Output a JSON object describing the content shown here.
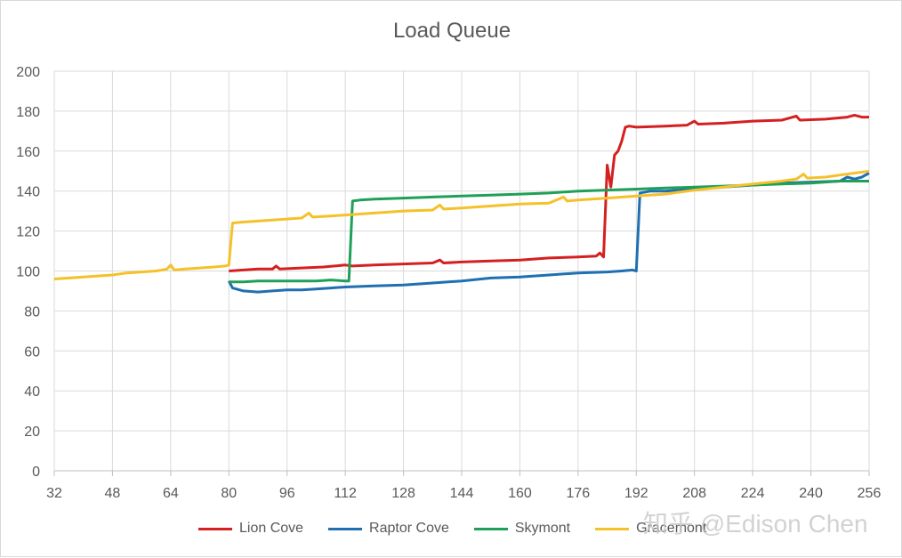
{
  "chart_data": {
    "type": "line",
    "title": "Load Queue",
    "xlabel": "",
    "ylabel": "",
    "xlim": [
      32,
      256
    ],
    "ylim": [
      0,
      200
    ],
    "x_ticks": [
      32,
      48,
      64,
      80,
      96,
      112,
      128,
      144,
      160,
      176,
      192,
      208,
      224,
      240,
      256
    ],
    "y_ticks": [
      0,
      20,
      40,
      60,
      80,
      100,
      120,
      140,
      160,
      180,
      200
    ],
    "grid": true,
    "legend_position": "bottom",
    "series": [
      {
        "name": "Lion Cove",
        "color": "#d42020",
        "points": [
          [
            80,
            100
          ],
          [
            84,
            100.5
          ],
          [
            88,
            101
          ],
          [
            92,
            101
          ],
          [
            93,
            102.5
          ],
          [
            94,
            101
          ],
          [
            100,
            101.5
          ],
          [
            106,
            102
          ],
          [
            112,
            103
          ],
          [
            114,
            102.5
          ],
          [
            120,
            103
          ],
          [
            128,
            103.5
          ],
          [
            136,
            104
          ],
          [
            138,
            105.5
          ],
          [
            139,
            104
          ],
          [
            144,
            104.5
          ],
          [
            152,
            105
          ],
          [
            160,
            105.5
          ],
          [
            168,
            106.5
          ],
          [
            176,
            107
          ],
          [
            181,
            107.5
          ],
          [
            182,
            109
          ],
          [
            183,
            107
          ],
          [
            184,
            153
          ],
          [
            185,
            142
          ],
          [
            186,
            158
          ],
          [
            187,
            160
          ],
          [
            188,
            165
          ],
          [
            189,
            172
          ],
          [
            190,
            172.5
          ],
          [
            192,
            172
          ],
          [
            200,
            172.5
          ],
          [
            206,
            173
          ],
          [
            208,
            175
          ],
          [
            209,
            173.5
          ],
          [
            216,
            174
          ],
          [
            224,
            175
          ],
          [
            232,
            175.5
          ],
          [
            236,
            177.5
          ],
          [
            237,
            175.5
          ],
          [
            244,
            176
          ],
          [
            250,
            177
          ],
          [
            252,
            178
          ],
          [
            254,
            177
          ],
          [
            256,
            177
          ]
        ]
      },
      {
        "name": "Raptor Cove",
        "color": "#1f6fb2",
        "points": [
          [
            80,
            95
          ],
          [
            81,
            91.5
          ],
          [
            84,
            90
          ],
          [
            88,
            89.5
          ],
          [
            92,
            90
          ],
          [
            96,
            90.5
          ],
          [
            100,
            90.5
          ],
          [
            104,
            91
          ],
          [
            108,
            91.5
          ],
          [
            112,
            92
          ],
          [
            120,
            92.5
          ],
          [
            128,
            93
          ],
          [
            136,
            94
          ],
          [
            144,
            95
          ],
          [
            152,
            96.5
          ],
          [
            160,
            97
          ],
          [
            168,
            98
          ],
          [
            176,
            99
          ],
          [
            184,
            99.5
          ],
          [
            188,
            100
          ],
          [
            191,
            100.5
          ],
          [
            192,
            100
          ],
          [
            193,
            139
          ],
          [
            196,
            140
          ],
          [
            200,
            140
          ],
          [
            208,
            141
          ],
          [
            216,
            142
          ],
          [
            224,
            143
          ],
          [
            232,
            144
          ],
          [
            240,
            144.5
          ],
          [
            248,
            145
          ],
          [
            250,
            147
          ],
          [
            252,
            146
          ],
          [
            254,
            147
          ],
          [
            256,
            149
          ]
        ]
      },
      {
        "name": "Skymont",
        "color": "#1fa058",
        "points": [
          [
            80,
            94.5
          ],
          [
            84,
            94.5
          ],
          [
            88,
            95
          ],
          [
            96,
            95
          ],
          [
            104,
            95
          ],
          [
            108,
            95.5
          ],
          [
            112,
            95
          ],
          [
            113,
            95
          ],
          [
            114,
            135
          ],
          [
            116,
            135.5
          ],
          [
            120,
            136
          ],
          [
            128,
            136.5
          ],
          [
            136,
            137
          ],
          [
            144,
            137.5
          ],
          [
            152,
            138
          ],
          [
            160,
            138.5
          ],
          [
            168,
            139
          ],
          [
            176,
            140
          ],
          [
            184,
            140.5
          ],
          [
            192,
            141
          ],
          [
            200,
            141.5
          ],
          [
            208,
            142
          ],
          [
            216,
            142.5
          ],
          [
            224,
            143
          ],
          [
            232,
            143.5
          ],
          [
            240,
            144
          ],
          [
            248,
            145
          ],
          [
            256,
            145
          ]
        ]
      },
      {
        "name": "Gracemont",
        "color": "#f5c12a",
        "points": [
          [
            32,
            96
          ],
          [
            36,
            96.5
          ],
          [
            40,
            97
          ],
          [
            44,
            97.5
          ],
          [
            48,
            98
          ],
          [
            52,
            99
          ],
          [
            56,
            99.5
          ],
          [
            60,
            100
          ],
          [
            63,
            101
          ],
          [
            64,
            103
          ],
          [
            65,
            100.5
          ],
          [
            68,
            101
          ],
          [
            72,
            101.5
          ],
          [
            76,
            102
          ],
          [
            79,
            102.5
          ],
          [
            80,
            103
          ],
          [
            81,
            124
          ],
          [
            84,
            124.5
          ],
          [
            88,
            125
          ],
          [
            92,
            125.5
          ],
          [
            96,
            126
          ],
          [
            100,
            126.5
          ],
          [
            102,
            129
          ],
          [
            103,
            127
          ],
          [
            108,
            127.5
          ],
          [
            112,
            128
          ],
          [
            120,
            129
          ],
          [
            128,
            130
          ],
          [
            136,
            130.5
          ],
          [
            138,
            133
          ],
          [
            139,
            131
          ],
          [
            144,
            131.5
          ],
          [
            152,
            132.5
          ],
          [
            160,
            133.5
          ],
          [
            168,
            134
          ],
          [
            172,
            137
          ],
          [
            173,
            135
          ],
          [
            176,
            135.5
          ],
          [
            184,
            136.5
          ],
          [
            192,
            137.5
          ],
          [
            200,
            138.5
          ],
          [
            208,
            140.5
          ],
          [
            216,
            142
          ],
          [
            224,
            143.5
          ],
          [
            232,
            145
          ],
          [
            236,
            146
          ],
          [
            238,
            148.5
          ],
          [
            239,
            146.5
          ],
          [
            244,
            147
          ],
          [
            248,
            148
          ],
          [
            252,
            149
          ],
          [
            256,
            150
          ]
        ]
      }
    ]
  },
  "watermark": "知乎 @Edison Chen"
}
